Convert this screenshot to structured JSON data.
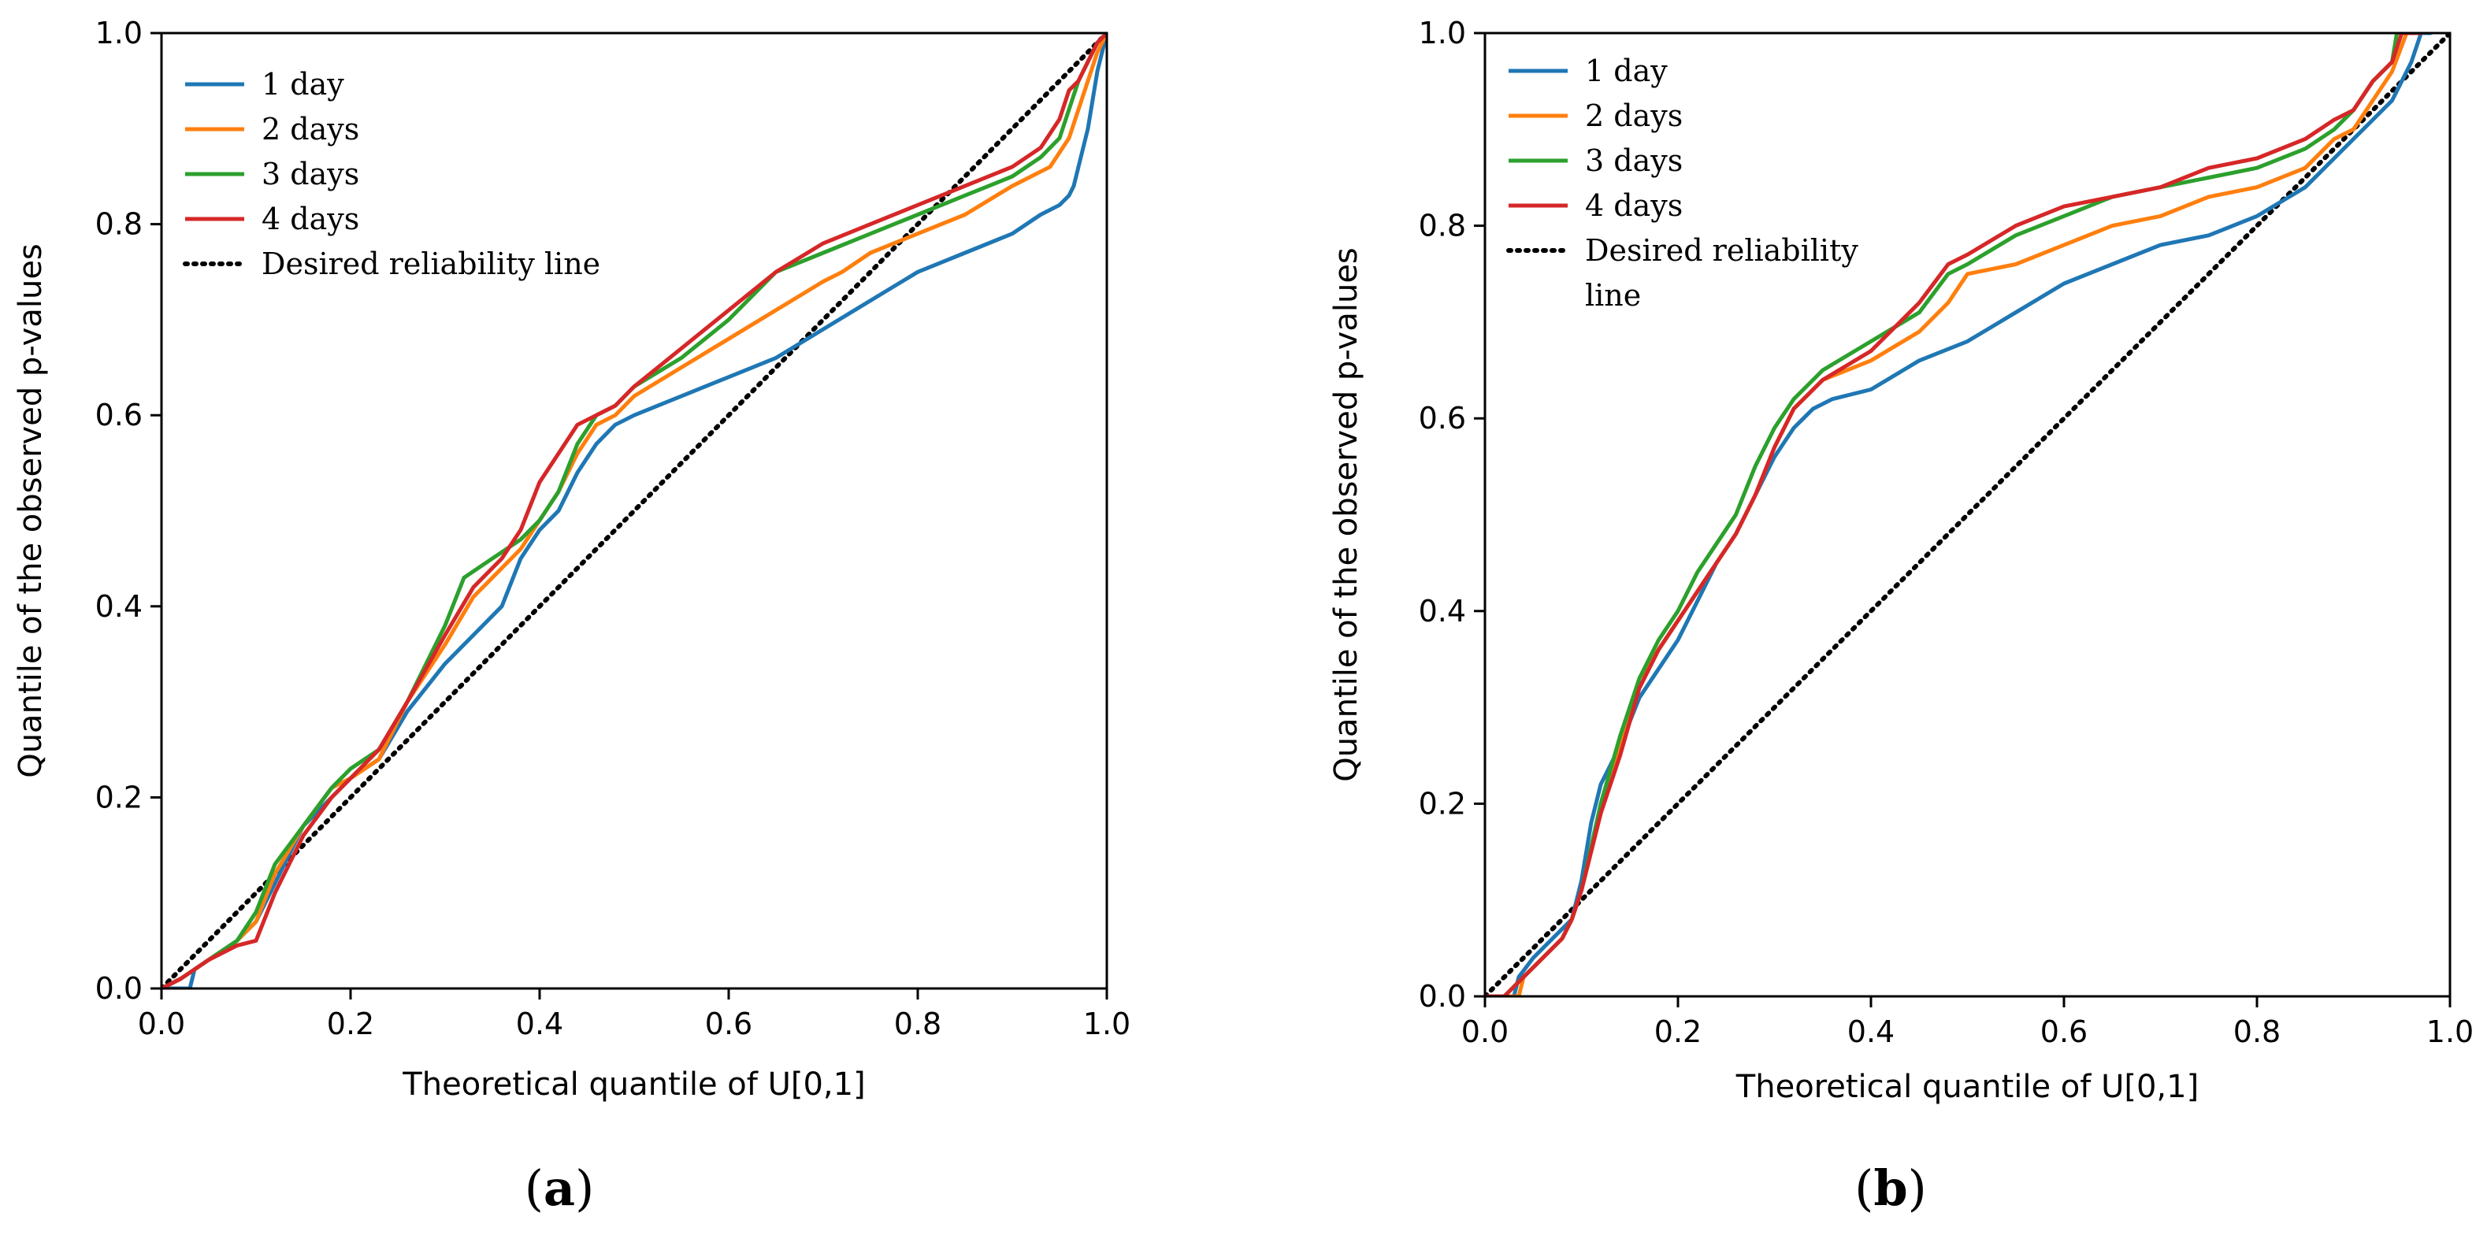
{
  "colors": {
    "day1": "#1f77b4",
    "day2": "#ff7f0e",
    "day3": "#2ca02c",
    "day4": "#d62728",
    "reference": "#000000"
  },
  "chart_data": [
    {
      "type": "line",
      "panel_label": "a",
      "xlabel": "Theoretical quantile of U[0,1]",
      "ylabel": "Quantile of the observed p-values",
      "xlim": [
        0,
        1
      ],
      "ylim": [
        0,
        1
      ],
      "xticks": [
        "0.0",
        "0.2",
        "0.4",
        "0.6",
        "0.8",
        "1.0"
      ],
      "yticks": [
        "0.0",
        "0.2",
        "0.4",
        "0.6",
        "0.8",
        "1.0"
      ],
      "grid": false,
      "legend_position": "upper-left",
      "reference_line": {
        "name": "Desired reliability line",
        "lines": [
          "Desired reliability line"
        ],
        "x": [
          0,
          1
        ],
        "y": [
          0,
          1
        ]
      },
      "series": [
        {
          "name": "1 day",
          "color": "#1f77b4",
          "x": [
            0,
            0.03,
            0.035,
            0.05,
            0.08,
            0.1,
            0.12,
            0.15,
            0.18,
            0.2,
            0.23,
            0.26,
            0.3,
            0.33,
            0.36,
            0.38,
            0.4,
            0.42,
            0.44,
            0.46,
            0.48,
            0.5,
            0.55,
            0.6,
            0.65,
            0.7,
            0.75,
            0.8,
            0.85,
            0.9,
            0.93,
            0.95,
            0.96,
            0.965,
            0.97,
            0.98,
            0.99,
            1.0
          ],
          "y": [
            0,
            0,
            0.02,
            0.03,
            0.05,
            0.07,
            0.11,
            0.17,
            0.2,
            0.22,
            0.24,
            0.29,
            0.34,
            0.37,
            0.4,
            0.45,
            0.48,
            0.5,
            0.54,
            0.57,
            0.59,
            0.6,
            0.62,
            0.64,
            0.66,
            0.69,
            0.72,
            0.75,
            0.77,
            0.79,
            0.81,
            0.82,
            0.83,
            0.84,
            0.86,
            0.9,
            0.96,
            1.0
          ]
        },
        {
          "name": "2 days",
          "color": "#ff7f0e",
          "x": [
            0,
            0.02,
            0.05,
            0.08,
            0.1,
            0.12,
            0.15,
            0.18,
            0.2,
            0.23,
            0.26,
            0.3,
            0.33,
            0.36,
            0.38,
            0.4,
            0.42,
            0.44,
            0.46,
            0.48,
            0.5,
            0.55,
            0.6,
            0.65,
            0.7,
            0.72,
            0.75,
            0.8,
            0.85,
            0.9,
            0.94,
            0.96,
            0.97,
            0.98,
            0.99,
            1.0
          ],
          "y": [
            0,
            0.01,
            0.03,
            0.05,
            0.07,
            0.12,
            0.17,
            0.21,
            0.22,
            0.24,
            0.3,
            0.36,
            0.41,
            0.44,
            0.46,
            0.49,
            0.52,
            0.56,
            0.59,
            0.6,
            0.62,
            0.65,
            0.68,
            0.71,
            0.74,
            0.75,
            0.77,
            0.79,
            0.81,
            0.84,
            0.86,
            0.89,
            0.92,
            0.95,
            0.98,
            1.0
          ]
        },
        {
          "name": "3 days",
          "color": "#2ca02c",
          "x": [
            0,
            0.02,
            0.05,
            0.08,
            0.1,
            0.12,
            0.15,
            0.18,
            0.2,
            0.23,
            0.26,
            0.3,
            0.32,
            0.35,
            0.38,
            0.4,
            0.42,
            0.44,
            0.46,
            0.48,
            0.5,
            0.55,
            0.6,
            0.63,
            0.65,
            0.7,
            0.75,
            0.8,
            0.85,
            0.9,
            0.93,
            0.95,
            0.96,
            0.97,
            0.98,
            0.99,
            1.0
          ],
          "y": [
            0,
            0.01,
            0.03,
            0.05,
            0.08,
            0.13,
            0.17,
            0.21,
            0.23,
            0.25,
            0.3,
            0.38,
            0.43,
            0.45,
            0.47,
            0.49,
            0.52,
            0.57,
            0.6,
            0.61,
            0.63,
            0.66,
            0.7,
            0.73,
            0.75,
            0.77,
            0.79,
            0.81,
            0.83,
            0.85,
            0.87,
            0.89,
            0.92,
            0.95,
            0.97,
            0.99,
            1.0
          ]
        },
        {
          "name": "4 days",
          "color": "#d62728",
          "x": [
            0,
            0.02,
            0.05,
            0.08,
            0.1,
            0.12,
            0.15,
            0.18,
            0.2,
            0.23,
            0.26,
            0.3,
            0.33,
            0.36,
            0.38,
            0.4,
            0.42,
            0.44,
            0.46,
            0.48,
            0.5,
            0.55,
            0.6,
            0.65,
            0.7,
            0.75,
            0.8,
            0.85,
            0.9,
            0.93,
            0.95,
            0.96,
            0.97,
            0.98,
            0.99,
            1.0
          ],
          "y": [
            0,
            0.01,
            0.03,
            0.045,
            0.05,
            0.1,
            0.16,
            0.2,
            0.22,
            0.25,
            0.3,
            0.37,
            0.42,
            0.45,
            0.48,
            0.53,
            0.56,
            0.59,
            0.6,
            0.61,
            0.63,
            0.67,
            0.71,
            0.75,
            0.78,
            0.8,
            0.82,
            0.84,
            0.86,
            0.88,
            0.91,
            0.94,
            0.95,
            0.97,
            0.99,
            1.0
          ]
        }
      ]
    },
    {
      "type": "line",
      "panel_label": "b",
      "xlabel": "Theoretical quantile of U[0,1]",
      "ylabel": "Quantile of the observed p-values",
      "xlim": [
        0,
        1
      ],
      "ylim": [
        0,
        1
      ],
      "xticks": [
        "0.0",
        "0.2",
        "0.4",
        "0.6",
        "0.8",
        "1.0"
      ],
      "yticks": [
        "0.0",
        "0.2",
        "0.4",
        "0.6",
        "0.8",
        "1.0"
      ],
      "grid": false,
      "legend_position": "upper-left",
      "reference_line": {
        "name": "Desired reliability line",
        "lines": [
          "Desired reliability",
          "line"
        ],
        "x": [
          0,
          1
        ],
        "y": [
          0,
          1
        ]
      },
      "series": [
        {
          "name": "1 day",
          "color": "#1f77b4",
          "x": [
            0,
            0.03,
            0.035,
            0.05,
            0.07,
            0.09,
            0.1,
            0.11,
            0.12,
            0.14,
            0.16,
            0.18,
            0.2,
            0.22,
            0.24,
            0.26,
            0.28,
            0.3,
            0.32,
            0.34,
            0.36,
            0.4,
            0.45,
            0.5,
            0.55,
            0.6,
            0.65,
            0.7,
            0.75,
            0.8,
            0.85,
            0.88,
            0.9,
            0.92,
            0.94,
            0.96,
            0.97,
            0.98
          ],
          "y": [
            0,
            0,
            0.02,
            0.04,
            0.06,
            0.08,
            0.12,
            0.18,
            0.22,
            0.26,
            0.31,
            0.34,
            0.37,
            0.41,
            0.45,
            0.48,
            0.52,
            0.56,
            0.59,
            0.61,
            0.62,
            0.63,
            0.66,
            0.68,
            0.71,
            0.74,
            0.76,
            0.78,
            0.79,
            0.81,
            0.84,
            0.87,
            0.89,
            0.91,
            0.93,
            0.97,
            1.0,
            1.0
          ]
        },
        {
          "name": "2 days",
          "color": "#ff7f0e",
          "x": [
            0,
            0.035,
            0.04,
            0.06,
            0.08,
            0.09,
            0.1,
            0.12,
            0.14,
            0.16,
            0.18,
            0.2,
            0.22,
            0.24,
            0.26,
            0.28,
            0.3,
            0.32,
            0.35,
            0.4,
            0.45,
            0.48,
            0.5,
            0.55,
            0.6,
            0.65,
            0.7,
            0.75,
            0.8,
            0.85,
            0.88,
            0.9,
            0.92,
            0.94,
            0.955,
            0.97
          ],
          "y": [
            0,
            0,
            0.02,
            0.04,
            0.06,
            0.08,
            0.11,
            0.19,
            0.26,
            0.33,
            0.36,
            0.39,
            0.42,
            0.45,
            0.48,
            0.52,
            0.57,
            0.61,
            0.64,
            0.66,
            0.69,
            0.72,
            0.75,
            0.76,
            0.78,
            0.8,
            0.81,
            0.83,
            0.84,
            0.86,
            0.89,
            0.9,
            0.93,
            0.96,
            1.0,
            1.0
          ]
        },
        {
          "name": "3 days",
          "color": "#2ca02c",
          "x": [
            0,
            0.02,
            0.04,
            0.06,
            0.08,
            0.09,
            0.1,
            0.12,
            0.14,
            0.16,
            0.18,
            0.2,
            0.22,
            0.24,
            0.26,
            0.28,
            0.3,
            0.32,
            0.35,
            0.4,
            0.45,
            0.48,
            0.5,
            0.55,
            0.6,
            0.65,
            0.7,
            0.75,
            0.8,
            0.85,
            0.88,
            0.9,
            0.92,
            0.94,
            0.945,
            0.97
          ],
          "y": [
            0,
            0,
            0.02,
            0.04,
            0.06,
            0.08,
            0.11,
            0.2,
            0.27,
            0.33,
            0.37,
            0.4,
            0.44,
            0.47,
            0.5,
            0.55,
            0.59,
            0.62,
            0.65,
            0.68,
            0.71,
            0.75,
            0.76,
            0.79,
            0.81,
            0.83,
            0.84,
            0.85,
            0.86,
            0.88,
            0.9,
            0.92,
            0.95,
            0.97,
            1.0,
            1.0
          ]
        },
        {
          "name": "4 days",
          "color": "#d62728",
          "x": [
            0,
            0.02,
            0.04,
            0.06,
            0.08,
            0.09,
            0.1,
            0.12,
            0.14,
            0.16,
            0.18,
            0.2,
            0.22,
            0.24,
            0.26,
            0.28,
            0.3,
            0.32,
            0.35,
            0.4,
            0.45,
            0.48,
            0.5,
            0.55,
            0.6,
            0.65,
            0.7,
            0.75,
            0.8,
            0.85,
            0.88,
            0.9,
            0.92,
            0.94,
            0.95,
            0.97
          ],
          "y": [
            0,
            0,
            0.02,
            0.04,
            0.06,
            0.08,
            0.11,
            0.19,
            0.25,
            0.32,
            0.36,
            0.39,
            0.42,
            0.45,
            0.48,
            0.52,
            0.57,
            0.61,
            0.64,
            0.67,
            0.72,
            0.76,
            0.77,
            0.8,
            0.82,
            0.83,
            0.84,
            0.86,
            0.87,
            0.89,
            0.91,
            0.92,
            0.95,
            0.97,
            1.0,
            1.0
          ]
        }
      ]
    }
  ]
}
